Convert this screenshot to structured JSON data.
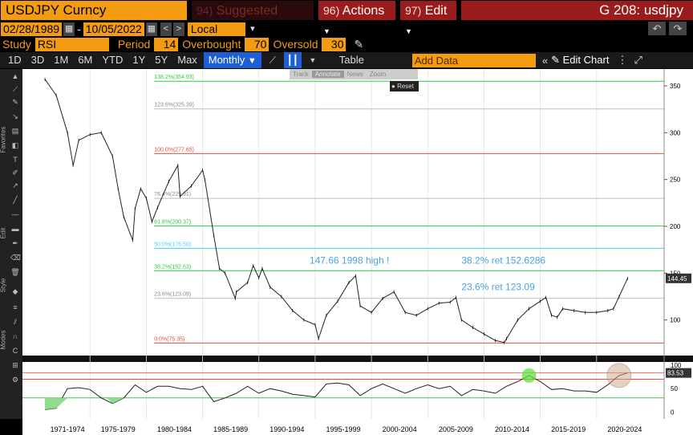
{
  "header": {
    "ticker": "USDJPY Curncy",
    "suggested_num": "94)",
    "suggested_label": "Suggested Charts",
    "actions_num": "96)",
    "actions_label": "Actions",
    "edit_num": "97)",
    "edit_label": "Edit",
    "chart_title": "G 208: usdjpy"
  },
  "range": {
    "start_date": "02/28/1989",
    "end_date": "10/05/2022",
    "currency": "Local CCY"
  },
  "study": {
    "study_label": "Study",
    "study_value": "RSI",
    "period_label": "Period",
    "period_value": "14",
    "overbought_label": "Overbought",
    "overbought_value": "70",
    "oversold_label": "Oversold",
    "oversold_value": "30"
  },
  "toolbar": {
    "periods": [
      "1D",
      "3D",
      "1M",
      "6M",
      "YTD",
      "1Y",
      "5Y",
      "Max"
    ],
    "frequency": "Monthly",
    "table_label": "Table",
    "add_data_placeholder": "Add Data",
    "edit_chart_label": "Edit Chart"
  },
  "floating": {
    "track": "Track",
    "annotate": "Annotate",
    "news": "News",
    "zoom": "Zoom",
    "reset": "Reset"
  },
  "sidebar_labels": {
    "favorites": "Favorites",
    "edit": "Edit",
    "style": "Style",
    "modes": "Modes"
  },
  "colors": {
    "accent": "#f39c12",
    "header_red": "#9b1c1c",
    "fib_green": "#2ecc40",
    "fib_red": "#e74c3c",
    "fib_cyan": "#3fd0ff",
    "annotation_blue": "#4aa3df"
  },
  "chart_data": [
    {
      "type": "line",
      "series": [
        {
          "x": [
            1971,
            1972,
            1973,
            1973.5,
            1974,
            1975,
            1976,
            1977,
            1977.5,
            1978,
            1978.8,
            1979,
            1979.5,
            1980,
            1980.5,
            1981,
            1982,
            1982.8,
            1983,
            1984,
            1985,
            1985.2,
            1986,
            1986.5,
            1987,
            1987.9,
            1988,
            1989,
            1989.5,
            1990,
            1990.3,
            1991,
            1992,
            1993,
            1994,
            1995,
            1995.3,
            1996,
            1997,
            1998,
            1998.6,
            1999,
            2000,
            2001,
            2002,
            2003,
            2004,
            2005,
            2006,
            2007,
            2007.5,
            2008,
            2009,
            2010,
            2011,
            2011.8,
            2012,
            2013,
            2014,
            2015,
            2015.5,
            2016,
            2016.5,
            2017,
            2018,
            2019,
            2020,
            2021,
            2021.5,
            2022,
            2022.75
          ],
          "y": [
            357,
            340,
            300,
            265,
            292,
            298,
            300,
            275,
            240,
            210,
            185,
            219,
            240,
            230,
            205,
            220,
            248,
            265,
            232,
            243,
            260,
            250,
            190,
            155,
            150,
            123,
            130,
            140,
            158,
            145,
            155,
            135,
            125,
            110,
            100,
            95,
            80,
            105,
            120,
            140,
            147,
            115,
            108,
            123,
            130,
            108,
            105,
            112,
            118,
            119,
            124,
            100,
            92,
            85,
            78,
            76,
            80,
            100,
            112,
            120,
            124,
            105,
            103,
            112,
            110,
            108,
            108,
            110,
            112,
            125,
            144.45
          ]
        }
      ],
      "fib_levels": [
        {
          "label": "138.2%(354.93)",
          "value": 354.93
        },
        {
          "label": "123.6%(325.39)",
          "value": 325.39
        },
        {
          "label": "100.0%(277.65)",
          "value": 277.65
        },
        {
          "label": "76.4%(229.91)",
          "value": 229.91
        },
        {
          "label": "61.8%(200.37)",
          "value": 200.37
        },
        {
          "label": "50.0%(176.50)",
          "value": 176.5
        },
        {
          "label": "38.2%(152.63)",
          "value": 152.63
        },
        {
          "label": "23.6%(123.09)",
          "value": 123.09
        },
        {
          "label": "0.0%(75.35)",
          "value": 75.35
        }
      ],
      "annotations": [
        "147.66 1998 high !",
        "38.2% ret 152.6286",
        "23.6% ret 123.09"
      ],
      "y_ticks": [
        100,
        150,
        200,
        250,
        300,
        350
      ],
      "last_value": "144.45",
      "ylim": [
        62,
        368
      ],
      "xlim": [
        1969,
        2026
      ]
    },
    {
      "type": "line",
      "series": [
        {
          "x": [
            1971,
            1972,
            1973,
            1974,
            1975,
            1976,
            1977,
            1978,
            1979,
            1980,
            1981,
            1982,
            1983,
            1984,
            1985,
            1986,
            1987,
            1988,
            1989,
            1990,
            1991,
            1992,
            1993,
            1994,
            1995,
            1996,
            1997,
            1998,
            1999,
            2000,
            2001,
            2002,
            2003,
            2004,
            2005,
            2006,
            2007,
            2008,
            2009,
            2010,
            2011,
            2012,
            2013,
            2014,
            2015,
            2016,
            2017,
            2018,
            2019,
            2020,
            2021,
            2022,
            2022.75
          ],
          "y": [
            5,
            8,
            50,
            52,
            48,
            30,
            18,
            30,
            58,
            42,
            55,
            55,
            50,
            48,
            55,
            22,
            30,
            40,
            55,
            40,
            50,
            45,
            38,
            35,
            32,
            60,
            62,
            58,
            35,
            50,
            60,
            50,
            40,
            50,
            58,
            50,
            55,
            35,
            48,
            45,
            40,
            55,
            65,
            78,
            65,
            48,
            50,
            45,
            45,
            42,
            58,
            78,
            83.53
          ]
        }
      ],
      "y_ticks": [
        0,
        50,
        100
      ],
      "overbought": 70,
      "oversold": 30,
      "last_value": "83.53",
      "ylim": [
        -15,
        107
      ]
    }
  ],
  "x_axis_labels": [
    "1971-1974",
    "1975-1979",
    "1980-1984",
    "1985-1989",
    "1990-1994",
    "1995-1999",
    "2000-2004",
    "2005-2009",
    "2010-2014",
    "2015-2019",
    "2020-2024"
  ]
}
